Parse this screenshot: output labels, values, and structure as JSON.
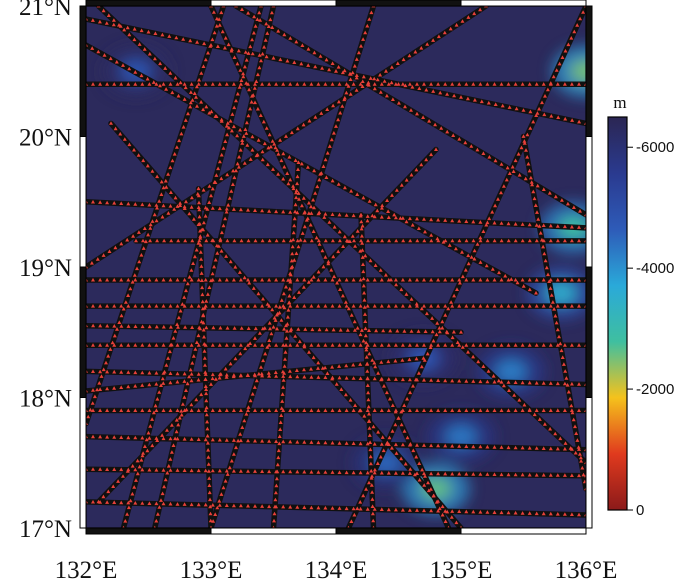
{
  "chart_data": {
    "type": "heatmap",
    "description_kind": "bathymetry map with ship survey tracks",
    "x_axis": {
      "ticks": [
        "132°E",
        "133°E",
        "134°E",
        "135°E",
        "136°E"
      ],
      "range": [
        132,
        136
      ]
    },
    "y_axis": {
      "ticks": [
        "17°N",
        "18°N",
        "19°N",
        "20°N",
        "21°N"
      ],
      "range": [
        17,
        21
      ]
    },
    "colorbar": {
      "unit": "m",
      "ticks": [
        "-6000",
        "-4000",
        "-2000",
        "0"
      ],
      "tick_values": [
        -6000,
        -4000,
        -2000,
        0
      ],
      "range": [
        -6500,
        0
      ],
      "orientation": "vertical-right",
      "colors": [
        "#8b1a1a",
        "#e03a1e",
        "#f5c21c",
        "#3fbfa0",
        "#2aa9d9",
        "#2e5bb8",
        "#2a3a8f",
        "#2b2653"
      ]
    },
    "background_depth_color": "#2c2a5c",
    "track_color": "#101010",
    "marker_color": "#e8413a",
    "shallow_regions": [
      {
        "lon": 136.0,
        "lat": 20.5,
        "depth": -2500
      },
      {
        "lon": 135.9,
        "lat": 19.3,
        "depth": -2800
      },
      {
        "lon": 135.8,
        "lat": 18.8,
        "depth": -3500
      },
      {
        "lon": 135.4,
        "lat": 18.2,
        "depth": -4200
      },
      {
        "lon": 135.0,
        "lat": 17.7,
        "depth": -4300
      },
      {
        "lon": 134.8,
        "lat": 17.3,
        "depth": -2600
      },
      {
        "lon": 134.4,
        "lat": 17.5,
        "depth": -4500
      },
      {
        "lon": 132.4,
        "lat": 20.5,
        "depth": -4800
      },
      {
        "lon": 134.7,
        "lat": 18.3,
        "depth": -4700
      }
    ],
    "survey_tracks": [
      {
        "from": [
          132.55,
          17.0
        ],
        "to": [
          133.5,
          21.0
        ]
      },
      {
        "from": [
          132.3,
          17.0
        ],
        "to": [
          133.4,
          21.0
        ]
      },
      {
        "from": [
          132.0,
          17.8
        ],
        "to": [
          133.1,
          21.0
        ]
      },
      {
        "from": [
          132.0,
          20.9
        ],
        "to": [
          136.0,
          20.1
        ]
      },
      {
        "from": [
          132.0,
          20.4
        ],
        "to": [
          136.0,
          20.4
        ]
      },
      {
        "from": [
          133.0,
          21.0
        ],
        "to": [
          134.9,
          17.0
        ]
      },
      {
        "from": [
          134.3,
          21.0
        ],
        "to": [
          133.0,
          17.0
        ]
      },
      {
        "from": [
          132.1,
          21.0
        ],
        "to": [
          136.0,
          17.5
        ]
      },
      {
        "from": [
          136.0,
          21.0
        ],
        "to": [
          134.1,
          17.0
        ]
      },
      {
        "from": [
          132.0,
          19.5
        ],
        "to": [
          136.0,
          19.3
        ]
      },
      {
        "from": [
          132.4,
          19.2
        ],
        "to": [
          136.0,
          19.2
        ]
      },
      {
        "from": [
          132.0,
          18.9
        ],
        "to": [
          136.0,
          18.9
        ]
      },
      {
        "from": [
          132.0,
          18.7
        ],
        "to": [
          136.0,
          18.7
        ]
      },
      {
        "from": [
          132.0,
          18.4
        ],
        "to": [
          136.0,
          18.4
        ]
      },
      {
        "from": [
          132.0,
          18.2
        ],
        "to": [
          136.0,
          18.1
        ]
      },
      {
        "from": [
          132.0,
          17.9
        ],
        "to": [
          136.0,
          17.9
        ]
      },
      {
        "from": [
          132.0,
          17.7
        ],
        "to": [
          136.0,
          17.6
        ]
      },
      {
        "from": [
          132.0,
          17.45
        ],
        "to": [
          136.0,
          17.4
        ]
      },
      {
        "from": [
          132.0,
          17.2
        ],
        "to": [
          136.0,
          17.1
        ]
      },
      {
        "from": [
          132.2,
          20.1
        ],
        "to": [
          135.0,
          17.0
        ]
      },
      {
        "from": [
          132.0,
          20.7
        ],
        "to": [
          135.6,
          18.8
        ]
      },
      {
        "from": [
          133.2,
          21.0
        ],
        "to": [
          136.0,
          19.4
        ]
      },
      {
        "from": [
          135.2,
          21.0
        ],
        "to": [
          132.0,
          19.0
        ]
      },
      {
        "from": [
          134.8,
          19.9
        ],
        "to": [
          132.1,
          17.2
        ]
      },
      {
        "from": [
          132.9,
          19.6
        ],
        "to": [
          133.0,
          17.0
        ]
      },
      {
        "from": [
          133.7,
          19.8
        ],
        "to": [
          133.5,
          17.0
        ]
      },
      {
        "from": [
          134.2,
          19.4
        ],
        "to": [
          134.3,
          17.0
        ]
      },
      {
        "from": [
          135.5,
          20.0
        ],
        "to": [
          136.0,
          17.3
        ]
      },
      {
        "from": [
          132.0,
          18.55
        ],
        "to": [
          135.0,
          18.5
        ]
      },
      {
        "from": [
          132.0,
          18.05
        ],
        "to": [
          134.7,
          18.3
        ]
      }
    ]
  }
}
